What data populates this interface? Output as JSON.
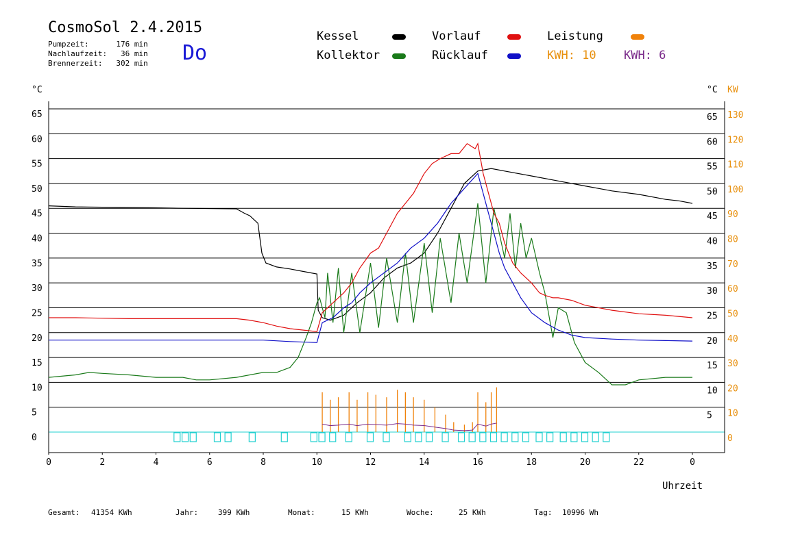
{
  "header": {
    "title": "CosmoSol 2.4.2015",
    "day": "Do",
    "info": [
      "Pumpzeit:      176 min",
      "Nachlaufzeit:   36 min",
      "Brennerzeit:   302 min"
    ]
  },
  "legend": {
    "items": [
      {
        "label": "Kessel",
        "color": "#000000"
      },
      {
        "label": "Kollektor",
        "color": "#1a7a1a"
      },
      {
        "label": "Vorlauf",
        "color": "#e01010"
      },
      {
        "label": "Rücklauf",
        "color": "#1010c8"
      },
      {
        "label": "Leistung",
        "color": "#f0820a"
      }
    ],
    "kwh1": "KWH: 10",
    "kwh2": "KWH: 6"
  },
  "colors": {
    "kessel": "#000000",
    "kollektor": "#1a7a1a",
    "vorlauf": "#e01010",
    "ruecklauf": "#1010c8",
    "leistung": "#f0820a",
    "kwh1": "#e8900e",
    "kwh2": "#7a2a8a",
    "pump": "#20d0d0"
  },
  "footer": {
    "gesamt_label": "Gesamt:",
    "gesamt_value": "41354 KWh",
    "jahr_label": "Jahr:",
    "jahr_value": "399 KWh",
    "monat_label": "Monat:",
    "monat_value": "15 KWh",
    "woche_label": "Woche:",
    "woche_value": "25 KWh",
    "tag_label": "Tag:",
    "tag_value": "10996 Wh"
  },
  "chart_data": {
    "type": "line",
    "xlabel": "Uhrzeit",
    "ylabel_left": "°C",
    "ylabel_right_temp": "°C",
    "ylabel_right_power": "KW",
    "xlim": [
      0,
      24
    ],
    "ylim": [
      0,
      65
    ],
    "grid": true,
    "x_ticks": [
      "0",
      "2",
      "4",
      "6",
      "8",
      "10",
      "12",
      "14",
      "16",
      "18",
      "20",
      "22",
      "0"
    ],
    "y_ticks_left": [
      "65",
      "60",
      "55",
      "50",
      "45",
      "40",
      "35",
      "30",
      "25",
      "20",
      "15",
      "10",
      "5",
      "0"
    ],
    "y_ticks_right_temp": [
      "65",
      "60",
      "55",
      "50",
      "45",
      "40",
      "35",
      "30",
      "25",
      "20",
      "15",
      "10",
      "5"
    ],
    "y_ticks_right_power": [
      "130",
      "120",
      "110",
      "100",
      "90",
      "80",
      "70",
      "60",
      "50",
      "40",
      "30",
      "20",
      "10",
      "0"
    ],
    "series": [
      {
        "name": "Kessel",
        "x": [
          0,
          1,
          4,
          5,
          7,
          7.3,
          7.5,
          7.8,
          7.95,
          8.1,
          8.5,
          9,
          9.5,
          10,
          10.05,
          10.2,
          10.5,
          11,
          11.5,
          12,
          12.5,
          13,
          13.5,
          14,
          14.5,
          15,
          15.5,
          16,
          16.5,
          17,
          18,
          19,
          20,
          21,
          22,
          23,
          23.5,
          24
        ],
        "y": [
          45.5,
          45.3,
          45.1,
          45,
          44.9,
          44,
          43.5,
          42,
          36,
          34,
          33.2,
          32.8,
          32.3,
          31.8,
          24.5,
          23,
          22.5,
          23.5,
          26,
          28,
          31,
          33,
          34,
          36,
          40,
          45,
          50,
          52.5,
          53,
          52.5,
          51.5,
          50.5,
          49.5,
          48.5,
          47.8,
          46.8,
          46.5,
          46
        ]
      },
      {
        "name": "Kollektor",
        "x": [
          0,
          1,
          1.5,
          2,
          3,
          4,
          5,
          5.5,
          6,
          7,
          8,
          8.5,
          9,
          9.3,
          9.6,
          9.8,
          10,
          10.1,
          10.3,
          10.4,
          10.6,
          10.8,
          11,
          11.3,
          11.6,
          12,
          12.3,
          12.6,
          13,
          13.3,
          13.6,
          14,
          14.3,
          14.6,
          15,
          15.3,
          15.6,
          16,
          16.3,
          16.6,
          17,
          17.2,
          17.4,
          17.6,
          17.8,
          18,
          18.3,
          18.5,
          18.8,
          19,
          19.3,
          19.6,
          20,
          20.5,
          21,
          21.5,
          22,
          23,
          24
        ],
        "y": [
          11,
          11.5,
          12,
          11.8,
          11.5,
          11,
          11,
          10.5,
          10.5,
          11,
          12,
          12,
          13,
          15,
          19,
          22,
          26,
          27,
          23,
          32,
          22,
          33,
          20,
          32,
          20,
          34,
          21,
          35,
          22,
          36,
          22,
          38,
          24,
          39,
          26,
          40,
          30,
          46,
          30,
          45,
          35,
          44,
          33,
          42,
          35,
          39,
          32,
          28,
          19,
          25,
          24,
          18,
          14,
          12,
          9.5,
          9.5,
          10.5,
          11,
          11
        ]
      },
      {
        "name": "Vorlauf",
        "x": [
          0,
          1,
          3,
          5,
          7,
          7.5,
          8,
          8.5,
          9,
          9.5,
          10,
          10.2,
          10.4,
          10.6,
          11,
          11.3,
          11.6,
          12,
          12.3,
          12.6,
          13,
          13.3,
          13.6,
          14,
          14.3,
          14.6,
          15,
          15.3,
          15.6,
          15.9,
          16,
          16.2,
          16.4,
          16.6,
          16.8,
          17,
          17.3,
          17.6,
          18,
          18.3,
          18.5,
          18.8,
          19,
          19.5,
          20,
          21,
          22,
          23,
          24
        ],
        "y": [
          23,
          23,
          22.8,
          22.8,
          22.8,
          22.5,
          22,
          21.3,
          20.8,
          20.5,
          20.2,
          24,
          25,
          26,
          28,
          30,
          33,
          36,
          37,
          40,
          44,
          46,
          48,
          52,
          54,
          55,
          56,
          56,
          58,
          57,
          58,
          52,
          48,
          44,
          42,
          38,
          34,
          32,
          30,
          28,
          27.5,
          27,
          27,
          26.5,
          25.5,
          24.5,
          23.8,
          23.5,
          23
        ]
      },
      {
        "name": "Rücklauf",
        "x": [
          0,
          1,
          3,
          5,
          7,
          8,
          9,
          10,
          10.2,
          10.4,
          10.6,
          11,
          11.3,
          11.6,
          12,
          12.5,
          13,
          13.5,
          14,
          14.5,
          15,
          15.5,
          16,
          16.2,
          16.4,
          16.6,
          16.8,
          17,
          17.3,
          17.6,
          18,
          18.5,
          19,
          19.5,
          20,
          21,
          22,
          23,
          24
        ],
        "y": [
          18.5,
          18.5,
          18.5,
          18.5,
          18.5,
          18.5,
          18.2,
          18,
          22,
          22.5,
          23,
          25,
          26,
          28,
          30,
          32,
          34,
          37,
          39,
          42,
          46,
          49,
          52,
          48,
          44,
          40,
          36,
          33,
          30,
          27,
          24,
          22,
          20.5,
          19.5,
          19,
          18.7,
          18.5,
          18.4,
          18.3
        ]
      },
      {
        "name": "Leistung",
        "x": [
          10.2,
          10.5,
          10.8,
          11.2,
          11.5,
          11.9,
          12.2,
          12.6,
          13,
          13.3,
          13.6,
          14,
          14.4,
          14.8,
          15.1,
          15.5,
          15.8,
          16,
          16.3,
          16.5,
          16.7
        ],
        "y": [
          8,
          6.5,
          7,
          8,
          6.5,
          8,
          7.5,
          7,
          8.5,
          8,
          7,
          6.5,
          5,
          3.5,
          2,
          1.5,
          2,
          8,
          6,
          8,
          9
        ]
      }
    ],
    "pump_markers_hours": [
      4.8,
      5.1,
      5.4,
      6.3,
      6.7,
      7.6,
      8.8,
      9.9,
      10.2,
      10.6,
      11.2,
      12,
      12.6,
      13.4,
      13.8,
      14.2,
      14.8,
      15.4,
      15.8,
      16.2,
      16.6,
      17,
      17.4,
      17.8,
      18.3,
      18.7,
      19.2,
      19.6,
      20,
      20.4,
      20.8
    ]
  }
}
